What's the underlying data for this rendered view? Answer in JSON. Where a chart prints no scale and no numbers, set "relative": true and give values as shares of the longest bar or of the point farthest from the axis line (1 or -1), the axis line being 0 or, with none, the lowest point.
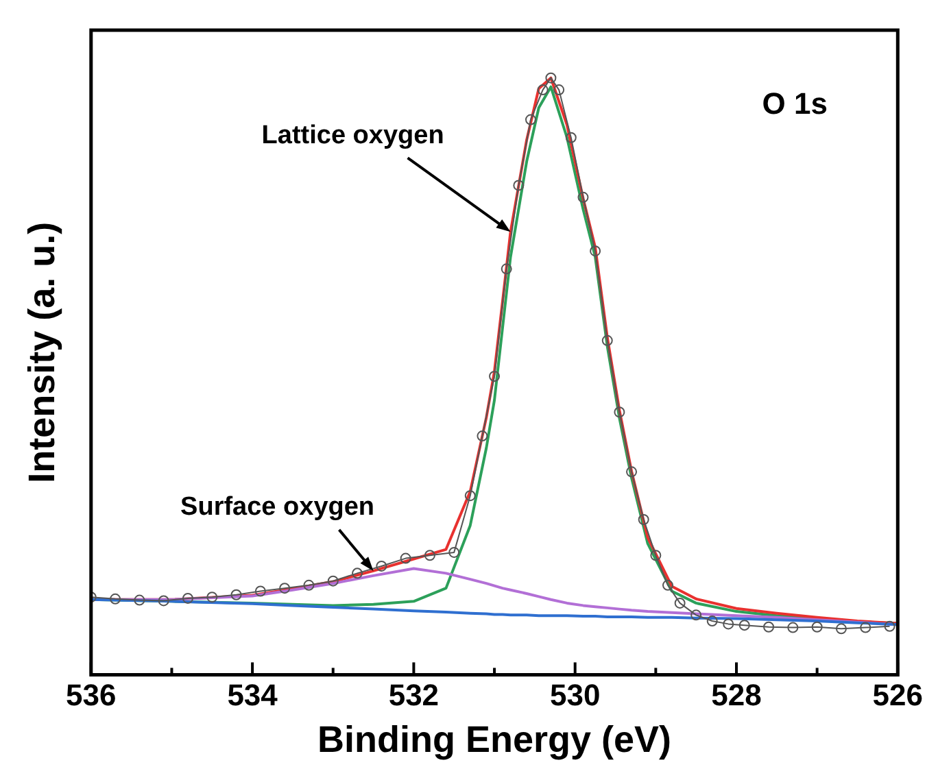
{
  "chart_data": {
    "type": "line",
    "relative": true,
    "xlabel": "Binding Energy (eV)",
    "ylabel": "Intensity (a. u.)",
    "xlim": [
      536,
      526
    ],
    "xticks": [
      536,
      {
        "value": 535,
        "label": null
      },
      534,
      {
        "value": 533,
        "label": null
      },
      532,
      {
        "value": 531,
        "label": null
      },
      530,
      {
        "value": 529,
        "label": null
      },
      528,
      {
        "value": 527,
        "label": null
      },
      526
    ],
    "grid": false,
    "legend": false,
    "tick_labels": "x",
    "x": [
      536,
      535,
      534,
      533.5,
      533,
      532.5,
      532,
      531.6,
      531.3,
      531.1,
      531,
      530.9,
      530.8,
      530.6,
      530.45,
      530.3,
      530.1,
      529.9,
      529.75,
      529.6,
      529.45,
      529.3,
      529.1,
      528.8,
      528.5,
      528,
      527.5,
      527,
      526.5,
      526
    ],
    "series": [
      {
        "marker": "circle",
        "color": "#555555",
        "x": [
          536,
          535.7,
          535.4,
          535.1,
          534.8,
          534.5,
          534.2,
          533.9,
          533.6,
          533.3,
          533,
          532.7,
          532.4,
          532.1,
          531.8,
          531.5,
          531.3,
          531.15,
          531,
          530.85,
          530.7,
          530.55,
          530.4,
          530.3,
          530.2,
          530.05,
          529.9,
          529.75,
          529.6,
          529.45,
          529.3,
          529.15,
          529,
          528.85,
          528.7,
          528.5,
          528.3,
          528.1,
          527.9,
          527.6,
          527.3,
          527,
          526.7,
          526.4,
          526.1
        ],
        "values": [
          0.13,
          0.127,
          0.125,
          0.124,
          0.128,
          0.13,
          0.134,
          0.14,
          0.145,
          0.15,
          0.157,
          0.17,
          0.182,
          0.195,
          0.2,
          0.205,
          0.3,
          0.4,
          0.5,
          0.68,
          0.82,
          0.93,
          0.98,
          1.0,
          0.98,
          0.9,
          0.8,
          0.71,
          0.56,
          0.44,
          0.34,
          0.26,
          0.2,
          0.15,
          0.12,
          0.1,
          0.09,
          0.085,
          0.083,
          0.08,
          0.079,
          0.08,
          0.077,
          0.079,
          0.081
        ]
      },
      {
        "marker": "none",
        "color": "#2f6fd0",
        "values": [
          0.126,
          0.123,
          0.119,
          0.116,
          0.113,
          0.11,
          0.107,
          0.105,
          0.103,
          0.102,
          0.101,
          0.101,
          0.1,
          0.1,
          0.099,
          0.099,
          0.099,
          0.098,
          0.098,
          0.097,
          0.097,
          0.097,
          0.096,
          0.096,
          0.095,
          0.094,
          0.092,
          0.09,
          0.087,
          0.084
        ]
      },
      {
        "marker": "none",
        "color": "#b26fd6",
        "values": [
          0.126,
          0.126,
          0.132,
          0.142,
          0.153,
          0.166,
          0.178,
          0.17,
          0.16,
          0.153,
          0.149,
          0.145,
          0.142,
          0.136,
          0.131,
          0.126,
          0.12,
          0.116,
          0.114,
          0.112,
          0.11,
          0.108,
          0.106,
          0.104,
          0.102,
          0.099,
          0.096,
          0.092,
          0.088,
          0.084
        ]
      },
      {
        "marker": "none",
        "color": "#e8312f",
        "values": [
          0.126,
          0.126,
          0.133,
          0.144,
          0.156,
          0.174,
          0.194,
          0.21,
          0.307,
          0.431,
          0.508,
          0.624,
          0.742,
          0.896,
          0.982,
          1.0,
          0.921,
          0.798,
          0.716,
          0.565,
          0.443,
          0.341,
          0.23,
          0.148,
          0.127,
          0.111,
          0.103,
          0.096,
          0.09,
          0.086
        ]
      },
      {
        "marker": "none",
        "color": "#2ca05a",
        "values": [
          0.126,
          0.123,
          0.12,
          0.118,
          0.116,
          0.118,
          0.123,
          0.145,
          0.25,
          0.38,
          0.46,
          0.58,
          0.7,
          0.86,
          0.95,
          0.985,
          0.9,
          0.78,
          0.7,
          0.55,
          0.43,
          0.33,
          0.22,
          0.14,
          0.12,
          0.106,
          0.099,
          0.094,
          0.089,
          0.086
        ]
      }
    ],
    "annotations": [
      {
        "text": "Lattice oxygen",
        "x": 530.8,
        "y": 0.742
      },
      {
        "text": "Surface oxygen",
        "x": 532.5,
        "y": 0.174
      },
      "O 1s"
    ]
  }
}
